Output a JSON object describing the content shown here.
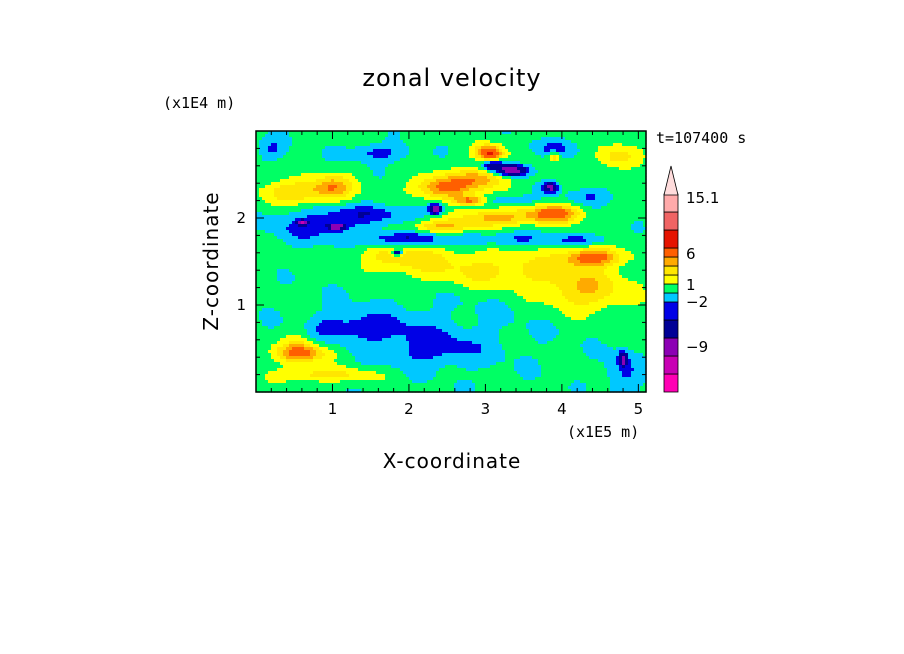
{
  "chart_data": {
    "type": "heatmap",
    "title": "zonal velocity",
    "xlabel": "X-coordinate",
    "ylabel": "Z-coordinate",
    "x_unit": "(x1E5 m)",
    "y_unit": "(x1E4 m)",
    "time_label": "t=107400 s",
    "xlim": [
      0,
      5.1
    ],
    "ylim": [
      0,
      3.0
    ],
    "x_ticks": [
      "1",
      "2",
      "3",
      "4",
      "5"
    ],
    "y_ticks": [
      "1",
      "2"
    ],
    "colorbar_labels": [
      "15.1",
      "6",
      "1",
      "−2",
      "−9"
    ],
    "colorbar_colors": [
      "#ff00b4",
      "#c800b4",
      "#8c00b4",
      "#000096",
      "#0000e6",
      "#00c8ff",
      "#00ff64",
      "#ffff00",
      "#ffe600",
      "#ffaa00",
      "#ff5f00",
      "#e61400",
      "#f06464",
      "#ffaaaa",
      "#ffdcdc"
    ],
    "field_blobs": [
      {
        "x": 2.6,
        "y": 1.0,
        "rx": 2.6,
        "ry": 1.3,
        "v": -0.5
      },
      {
        "x": 1.3,
        "y": 0.75,
        "rx": 1.1,
        "ry": 0.25,
        "v": -1.8
      },
      {
        "x": 2.3,
        "y": 0.5,
        "rx": 1.0,
        "ry": 0.3,
        "v": -1.6
      },
      {
        "x": 4.8,
        "y": 0.2,
        "rx": 0.35,
        "ry": 0.4,
        "v": -1.5
      },
      {
        "x": 4.3,
        "y": 1.15,
        "rx": 0.8,
        "ry": 0.35,
        "v": 2.5
      },
      {
        "x": 3.2,
        "y": 1.4,
        "rx": 1.8,
        "ry": 0.35,
        "v": 2.2
      },
      {
        "x": 0.6,
        "y": 0.45,
        "rx": 0.5,
        "ry": 0.15,
        "v": 3.5
      },
      {
        "x": 0.9,
        "y": 0.2,
        "rx": 1.0,
        "ry": 0.12,
        "v": 2.0
      },
      {
        "x": 0.55,
        "y": 0.55,
        "rx": 0.3,
        "ry": 0.5,
        "v": 1.2
      },
      {
        "x": 0.8,
        "y": 1.9,
        "rx": 0.9,
        "ry": 0.25,
        "v": -1.8
      },
      {
        "x": 1.9,
        "y": 1.55,
        "rx": 0.9,
        "ry": 0.25,
        "v": 2.0
      },
      {
        "x": 0.5,
        "y": 2.3,
        "rx": 0.6,
        "ry": 0.2,
        "v": 2.5
      },
      {
        "x": 1.0,
        "y": 2.35,
        "rx": 0.4,
        "ry": 0.2,
        "v": 3.2
      },
      {
        "x": 1.6,
        "y": 2.75,
        "rx": 0.6,
        "ry": 0.15,
        "v": -1.8
      },
      {
        "x": 0.2,
        "y": 2.8,
        "rx": 0.3,
        "ry": 0.18,
        "v": -1.5
      },
      {
        "x": 3.9,
        "y": 2.8,
        "rx": 0.5,
        "ry": 0.15,
        "v": -1.4
      },
      {
        "x": 4.7,
        "y": 2.7,
        "rx": 0.4,
        "ry": 0.2,
        "v": 2.0
      },
      {
        "x": 1.5,
        "y": 2.05,
        "rx": 1.0,
        "ry": 0.15,
        "v": -1.7
      },
      {
        "x": 1.9,
        "y": 1.75,
        "rx": 0.8,
        "ry": 0.12,
        "v": -2.5
      },
      {
        "x": 2.4,
        "y": 1.9,
        "rx": 0.6,
        "ry": 0.1,
        "v": 2.5
      },
      {
        "x": 2.45,
        "y": 2.35,
        "rx": 0.55,
        "ry": 0.2,
        "v": 4.0
      },
      {
        "x": 2.95,
        "y": 2.45,
        "rx": 0.5,
        "ry": 0.18,
        "v": 3.0
      },
      {
        "x": 3.1,
        "y": 2.0,
        "rx": 0.8,
        "ry": 0.15,
        "v": 3.2
      },
      {
        "x": 3.9,
        "y": 2.05,
        "rx": 0.5,
        "ry": 0.15,
        "v": 4.5
      },
      {
        "x": 4.4,
        "y": 1.55,
        "rx": 0.55,
        "ry": 0.15,
        "v": 4.2
      },
      {
        "x": 3.3,
        "y": 1.75,
        "rx": 1.1,
        "ry": 0.12,
        "v": -1.4
      },
      {
        "x": 4.3,
        "y": 1.75,
        "rx": 0.6,
        "ry": 0.1,
        "v": -1.3
      },
      {
        "x": 3.3,
        "y": 2.2,
        "rx": 0.5,
        "ry": 0.1,
        "v": -1.4
      },
      {
        "x": 4.4,
        "y": 2.25,
        "rx": 0.5,
        "ry": 0.15,
        "v": -1.3
      },
      {
        "x": 3.05,
        "y": 2.75,
        "rx": 0.25,
        "ry": 0.12,
        "v": 6.0
      },
      {
        "x": 3.35,
        "y": 2.55,
        "rx": 0.3,
        "ry": 0.1,
        "v": -6.0
      },
      {
        "x": 3.1,
        "y": 2.6,
        "rx": 0.2,
        "ry": 0.08,
        "v": -3.5
      },
      {
        "x": 2.35,
        "y": 2.1,
        "rx": 0.14,
        "ry": 0.08,
        "v": -6.0
      },
      {
        "x": 3.85,
        "y": 2.35,
        "rx": 0.15,
        "ry": 0.08,
        "v": -5.0
      },
      {
        "x": 1.05,
        "y": 1.9,
        "rx": 0.15,
        "ry": 0.05,
        "v": -6.0
      },
      {
        "x": 0.6,
        "y": 1.95,
        "rx": 0.1,
        "ry": 0.04,
        "v": -5.0
      },
      {
        "x": 1.85,
        "y": 1.6,
        "rx": 0.1,
        "ry": 0.05,
        "v": -5.0
      },
      {
        "x": 4.8,
        "y": 0.38,
        "rx": 0.08,
        "ry": 0.12,
        "v": -5.0
      },
      {
        "x": 3.9,
        "y": 2.7,
        "rx": 0.12,
        "ry": 0.08,
        "v": 3.0
      },
      {
        "x": 2.8,
        "y": 2.2,
        "rx": 0.3,
        "ry": 0.08,
        "v": 3.8
      }
    ]
  }
}
